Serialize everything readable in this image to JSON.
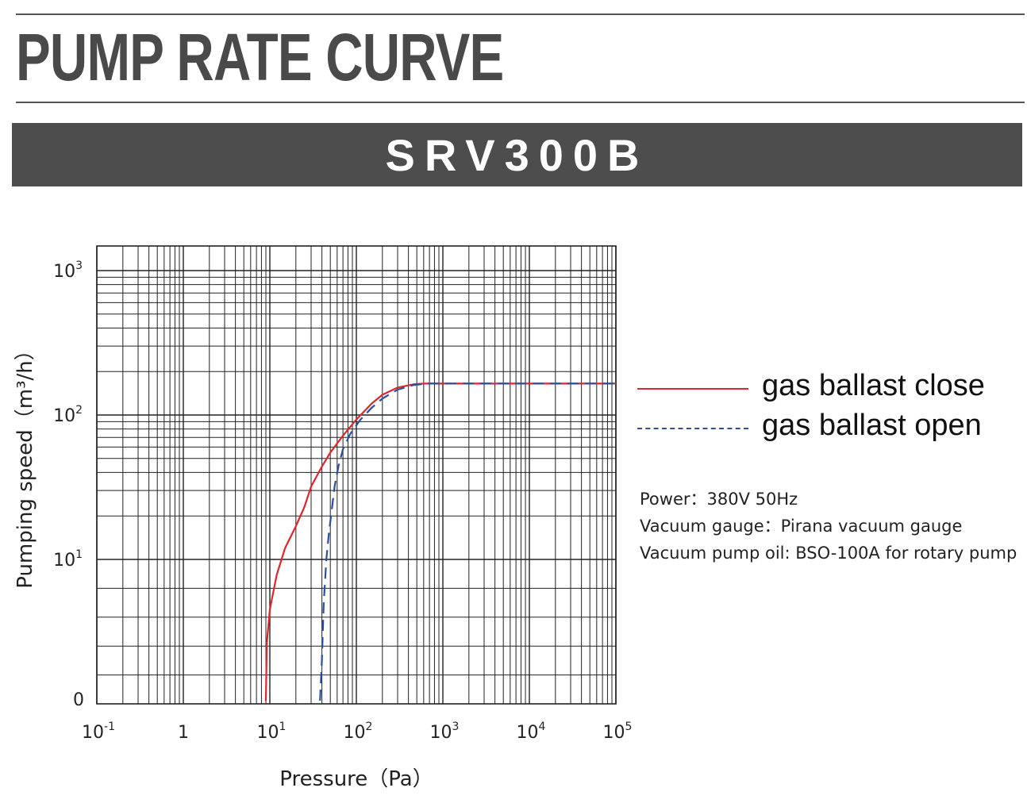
{
  "header": {
    "title": "PUMP RATE CURVE",
    "model": "SRV300B"
  },
  "notes": [
    "Power：380V 50Hz",
    "Vacuum gauge：Pirana vacuum gauge",
    "Vacuum pump oil: BSO-100A for rotary pump"
  ],
  "colors": {
    "close": "#e0262b",
    "open": "#2a4fa0",
    "band": "#4d4d4d",
    "grid": "#222222"
  },
  "chart_data": {
    "type": "line",
    "title": "",
    "xlabel": "Pressure（Pa）",
    "ylabel": "Pumping speed（m³/h）",
    "x_scale": "log",
    "y_scale": "log",
    "xlim": [
      0.1,
      100000
    ],
    "ylim": [
      "0",
      1500
    ],
    "grid": true,
    "legend_position": "right",
    "x_ticks": [
      {
        "value": 0.1,
        "base": "10",
        "exp": "-1"
      },
      {
        "value": 1,
        "base": "1",
        "exp": ""
      },
      {
        "value": 10,
        "base": "10",
        "exp": "1"
      },
      {
        "value": 100,
        "base": "10",
        "exp": "2"
      },
      {
        "value": 1000,
        "base": "10",
        "exp": "3"
      },
      {
        "value": 10000,
        "base": "10",
        "exp": "4"
      },
      {
        "value": 100000,
        "base": "10",
        "exp": "5"
      }
    ],
    "y_ticks": [
      {
        "value": "0",
        "base": "0",
        "exp": ""
      },
      {
        "value": 10,
        "base": "10",
        "exp": "1"
      },
      {
        "value": 100,
        "base": "10",
        "exp": "2"
      },
      {
        "value": 1000,
        "base": "10",
        "exp": "3"
      }
    ],
    "series": [
      {
        "name": "gas ballast close",
        "style": "solid",
        "points": [
          [
            9,
            0.35
          ],
          [
            9.2,
            2.6
          ],
          [
            10,
            4.5
          ],
          [
            12,
            7.8
          ],
          [
            15,
            12
          ],
          [
            20,
            17
          ],
          [
            25,
            23
          ],
          [
            30,
            32
          ],
          [
            40,
            44
          ],
          [
            50,
            55
          ],
          [
            70,
            72
          ],
          [
            100,
            93
          ],
          [
            150,
            120
          ],
          [
            200,
            138
          ],
          [
            300,
            155
          ],
          [
            450,
            163
          ],
          [
            600,
            165
          ],
          [
            1000,
            165
          ],
          [
            100000,
            165
          ]
        ]
      },
      {
        "name": "gas ballast open",
        "style": "dashed",
        "points": [
          [
            38,
            0.35
          ],
          [
            40,
            2
          ],
          [
            42,
            5
          ],
          [
            45,
            10
          ],
          [
            48,
            15
          ],
          [
            52,
            22
          ],
          [
            56,
            32
          ],
          [
            62,
            44
          ],
          [
            70,
            58
          ],
          [
            85,
            74
          ],
          [
            110,
            92
          ],
          [
            150,
            112
          ],
          [
            200,
            130
          ],
          [
            300,
            150
          ],
          [
            450,
            161
          ],
          [
            650,
            165
          ],
          [
            1000,
            165
          ],
          [
            100000,
            165
          ]
        ]
      }
    ]
  }
}
